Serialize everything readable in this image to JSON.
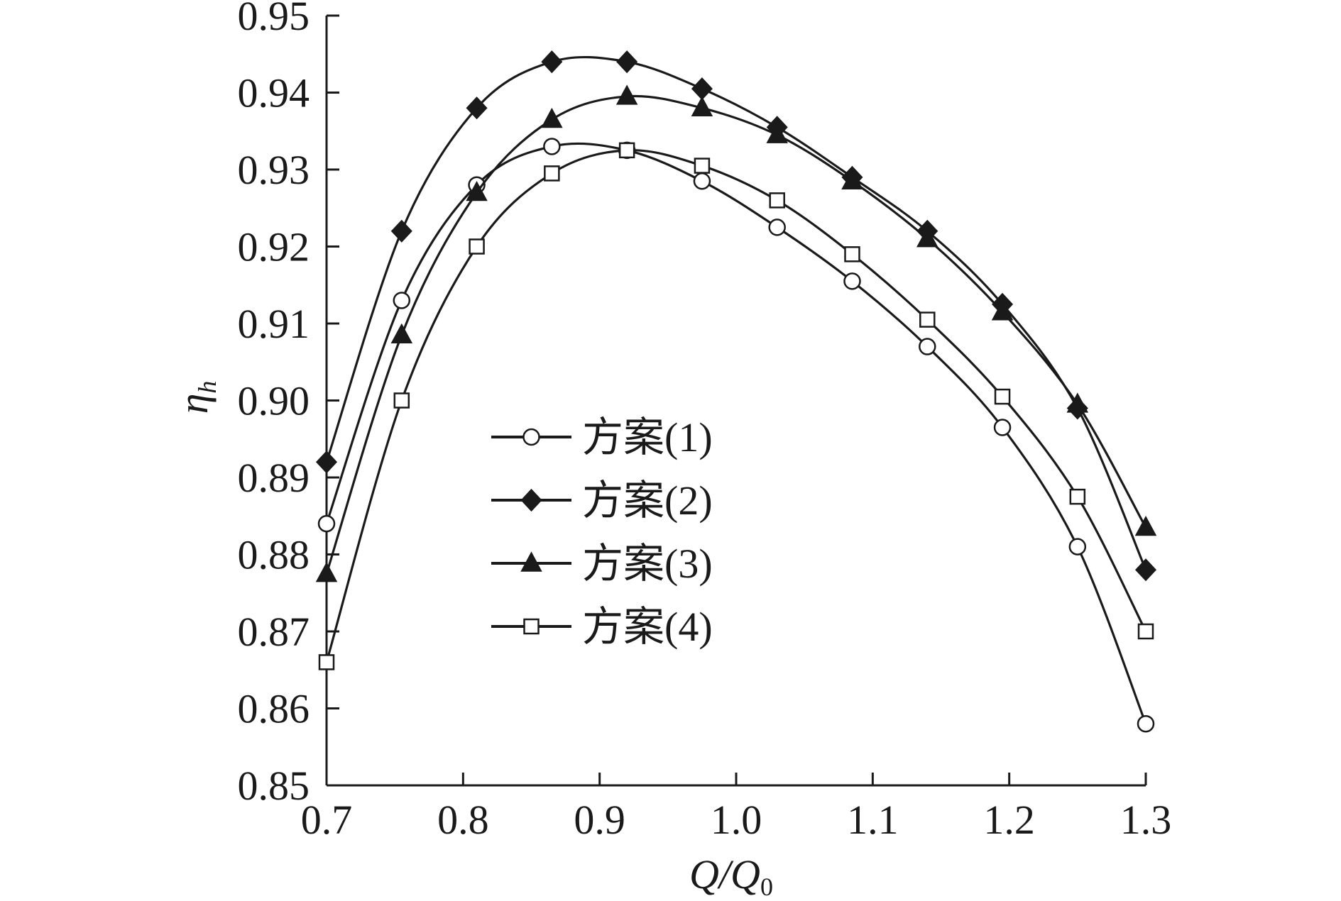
{
  "chart_data": {
    "type": "line",
    "xlabel": "Q/Q",
    "xlabel_subscript": "0",
    "ylabel": "η",
    "ylabel_subscript": "h",
    "xlim": [
      0.7,
      1.3
    ],
    "ylim": [
      0.85,
      0.95
    ],
    "xticks": [
      0.7,
      0.8,
      0.9,
      1.0,
      1.1,
      1.2,
      1.3
    ],
    "xtick_labels": [
      "0.7",
      "0.8",
      "0.9",
      "1.0",
      "1.1",
      "1.2",
      "1.3"
    ],
    "yticks": [
      0.85,
      0.86,
      0.87,
      0.88,
      0.89,
      0.9,
      0.91,
      0.92,
      0.93,
      0.94,
      0.95
    ],
    "ytick_labels": [
      "0.85",
      "0.86",
      "0.87",
      "0.88",
      "0.89",
      "0.90",
      "0.91",
      "0.92",
      "0.93",
      "0.94",
      "0.95"
    ],
    "grid": false,
    "legend_position": "center-left",
    "x": [
      0.7,
      0.755,
      0.81,
      0.865,
      0.92,
      0.975,
      1.03,
      1.085,
      1.14,
      1.195,
      1.25,
      1.3
    ],
    "series": [
      {
        "name": "方案(1)",
        "marker": "circle-open",
        "values": [
          0.884,
          0.913,
          0.928,
          0.933,
          0.9325,
          0.9285,
          0.9225,
          0.9155,
          0.907,
          0.8965,
          0.881,
          0.858
        ]
      },
      {
        "name": "方案(2)",
        "marker": "diamond-filled",
        "values": [
          0.892,
          0.922,
          0.938,
          0.944,
          0.944,
          0.9405,
          0.9355,
          0.929,
          0.922,
          0.9125,
          0.899,
          0.878
        ]
      },
      {
        "name": "方案(3)",
        "marker": "triangle-filled",
        "values": [
          0.8775,
          0.9085,
          0.927,
          0.9365,
          0.9395,
          0.938,
          0.9345,
          0.9285,
          0.921,
          0.9115,
          0.8995,
          0.8835
        ]
      },
      {
        "name": "方案(4)",
        "marker": "square-open",
        "values": [
          0.866,
          0.9,
          0.92,
          0.9295,
          0.9325,
          0.9305,
          0.926,
          0.919,
          0.9105,
          0.9005,
          0.8875,
          0.87
        ]
      }
    ]
  },
  "colors": {
    "line": "#1a1a1a",
    "marker_open_fill": "#ffffff",
    "background": "#ffffff"
  }
}
